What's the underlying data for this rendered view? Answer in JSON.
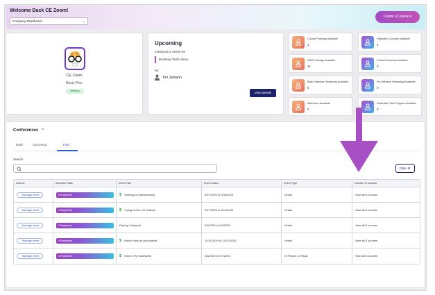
{
  "header": {
    "welcome": "Welcome Back CE Zoom!",
    "dashboard_select": "Company Dashboard",
    "create_button": "Create a Course"
  },
  "profile": {
    "name": "CE Zoom",
    "plan": "Basic Plan",
    "badge": "Dentistry"
  },
  "upcoming": {
    "title": "Upcoming",
    "datetime": "4/30/2025 2:19:00 AM",
    "event": "Brushing Teeth demo",
    "by_label": "By:",
    "person": "Tori Jackson",
    "view_button": "View details"
  },
  "stats": [
    {
      "label": "Course Postings Available",
      "value": "1",
      "color": "orange"
    },
    {
      "label": "Repeated Courses Available",
      "value": "1",
      "color": "purple"
    },
    {
      "label": "AGD Postings Available",
      "value": "11",
      "color": "orange"
    },
    {
      "label": "Course Accuracy Available",
      "value": "0",
      "color": "purple"
    },
    {
      "label": "Basic Webinar Streaming Available",
      "value": "0",
      "color": "orange"
    },
    {
      "label": "Pro Webinar Streaming Available",
      "value": "0",
      "color": "purple"
    },
    {
      "label": "Web-from Available",
      "value": "0",
      "color": "orange"
    },
    {
      "label": "Dedicated Tech Support Available",
      "value": "0",
      "color": "purple"
    }
  ],
  "conferences": {
    "title": "Conferences",
    "tabs": [
      "Draft",
      "Upcoming",
      "Past"
    ],
    "active_tab": "Past",
    "search_label": "Search",
    "filter_button": "Filter",
    "columns": [
      "Actions",
      "Attendee Stats",
      "Event Title",
      "Event Dates",
      "Event Type",
      "Number of courses"
    ],
    "rows": [
      {
        "action": "Manage event",
        "attendees": "5 Registered",
        "paid": true,
        "title": "Winning a Championship",
        "dates": "3/27/2025 to 3/30/2025",
        "type": "Virtual",
        "courses": "View all 4 courses"
      },
      {
        "action": "Manage event",
        "attendees": "2 Registered",
        "paid": true,
        "title": "Trying out for HS Softball",
        "dates": "3/17/2025 to 3/19/2025",
        "type": "Virtual",
        "courses": "View all 4 courses"
      },
      {
        "action": "Manage event",
        "attendees": "0 Registered",
        "paid": false,
        "title": "Playing Volleyball",
        "dates": "2/3/2025 to 2/4/2025",
        "type": "Virtual",
        "courses": "View all 5 courses"
      },
      {
        "action": "Manage event",
        "attendees": "4 Registered",
        "paid": true,
        "title": "How to pick an accountant",
        "dates": "12/11/2024 to 12/11/2024",
        "type": "Virtual",
        "courses": "View all 3 courses"
      },
      {
        "action": "Manage event",
        "attendees": "4 Registered",
        "paid": true,
        "title": "How to Fly Southwest",
        "dates": "2/6/2025 to 2/7/2025",
        "type": "In Person & Virtual",
        "courses": "View all 4 courses"
      }
    ]
  },
  "colors": {
    "accent_purple": "#a349c4",
    "navy": "#1b2366",
    "annotation_arrow": "#a84fc6"
  }
}
